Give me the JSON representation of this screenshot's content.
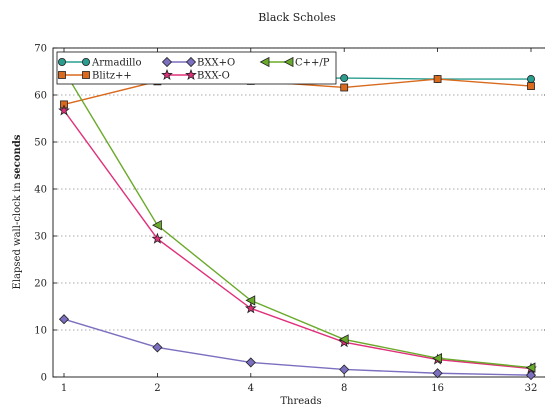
{
  "chart_data": {
    "type": "line",
    "title": "Black Scholes",
    "xlabel": "Threads",
    "ylabel_prefix": "Elapsed wall-clock in ",
    "ylabel_emphasis": "seconds",
    "x_scale": "log2",
    "categories": [
      "1",
      "2",
      "4",
      "8",
      "16",
      "32"
    ],
    "ylim": [
      0,
      70
    ],
    "yticks": [
      0,
      10,
      20,
      30,
      40,
      50,
      60,
      70
    ],
    "grid": true,
    "legend_position": "top-left",
    "series": [
      {
        "name": "Armadillo",
        "color": "#2a9d8f",
        "marker": "circle",
        "values": [
          63.7,
          63.6,
          63.5,
          63.6,
          63.4,
          63.4
        ]
      },
      {
        "name": "Blitz++",
        "color": "#d96a1e",
        "marker": "square",
        "values": [
          58.0,
          62.9,
          63.0,
          61.6,
          63.4,
          61.9
        ]
      },
      {
        "name": "BXX+O",
        "color": "#7b6fbf",
        "marker": "diamond",
        "values": [
          12.3,
          6.3,
          3.1,
          1.6,
          0.8,
          0.4
        ]
      },
      {
        "name": "BXX-O",
        "color": "#e0307a",
        "marker": "star",
        "values": [
          56.7,
          29.4,
          14.6,
          7.4,
          3.7,
          1.8
        ]
      },
      {
        "name": "C++/P",
        "color": "#6aaa2a",
        "marker": "triangle-left",
        "values": [
          65.2,
          32.3,
          16.3,
          8.0,
          4.0,
          2.0
        ]
      }
    ]
  }
}
